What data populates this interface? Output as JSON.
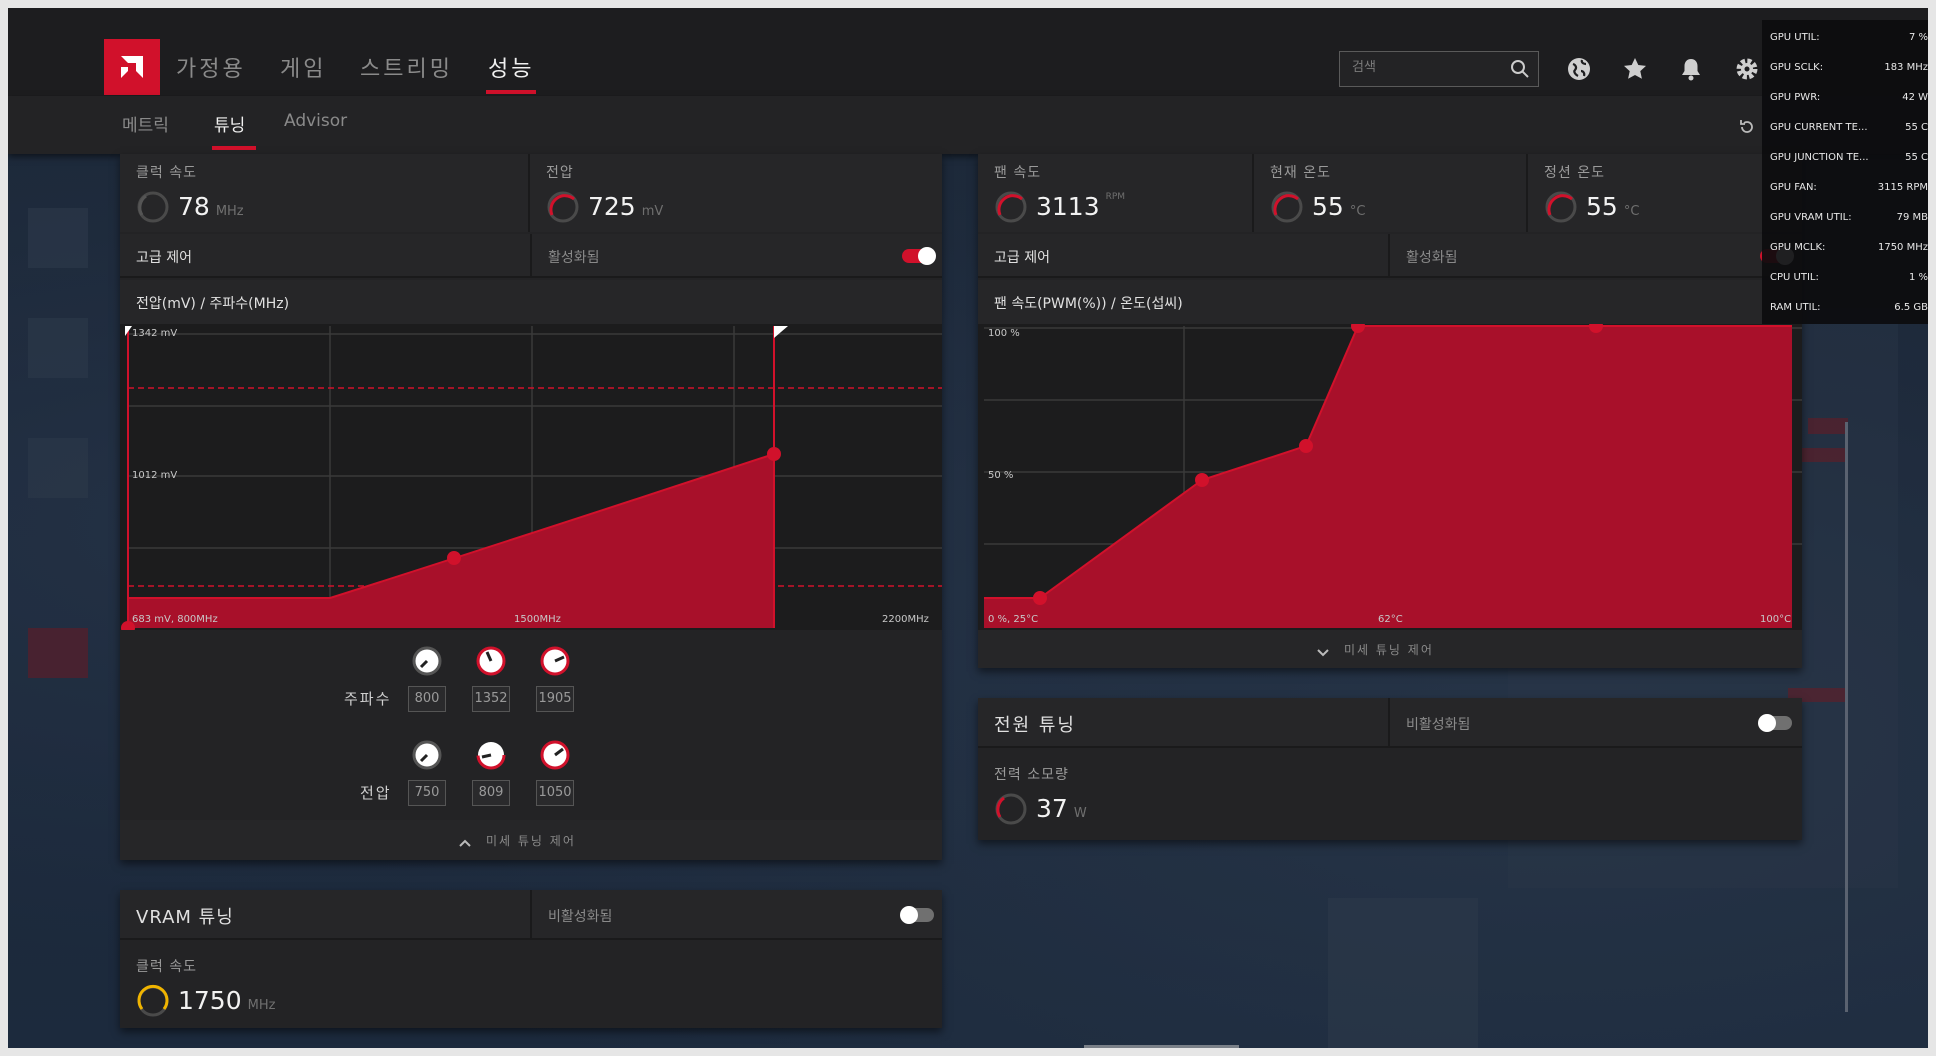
{
  "nav": {
    "tabs": [
      "가정용",
      "게임",
      "스트리밍",
      "성능"
    ],
    "active_tab": "성능",
    "search_placeholder": "검색"
  },
  "subnav": {
    "tabs": [
      "메트릭",
      "튜닝",
      "Advisor"
    ],
    "active_tab": "튜닝"
  },
  "gpu_tuning": {
    "clock": {
      "label": "클럭 속도",
      "value": "78",
      "unit": "MHz"
    },
    "voltage": {
      "label": "전압",
      "value": "725",
      "unit": "mV"
    },
    "advanced_label": "고급 제어",
    "status": "활성화됨",
    "enabled": true,
    "chart_title": "전압(mV) / 주파수(MHz)",
    "chart": {
      "y_labels": [
        "1342 mV",
        "1012 mV"
      ],
      "bottom_left": "683 mV, 800MHz",
      "bottom_mid": "1500MHz",
      "bottom_right": "2200MHz"
    },
    "freq_label": "주파수",
    "volt_label": "전압",
    "freq_values": [
      "800",
      "1352",
      "1905"
    ],
    "volt_values": [
      "750",
      "809",
      "1050"
    ],
    "fine_label": "미세 튜닝 제어"
  },
  "fan_tuning": {
    "fan_speed": {
      "label": "팬 속도",
      "value": "3113",
      "unit": "RPM"
    },
    "current_temp": {
      "label": "현재 온도",
      "value": "55",
      "unit": "°C"
    },
    "junction_temp": {
      "label": "정션 온도",
      "value": "55",
      "unit": "°C"
    },
    "advanced_label": "고급 제어",
    "status": "활성화됨",
    "enabled": true,
    "chart_title": "팬 속도(PWM(%)) / 온도(섭씨)",
    "chart": {
      "y_labels": [
        "100 %",
        "50 %"
      ],
      "bottom_left": "0 %, 25°C",
      "bottom_mid": "62°C",
      "bottom_right": "100°C"
    },
    "fine_label": "미세 튜닝 제어"
  },
  "power_tuning": {
    "title": "전원 튜닝",
    "status": "비활성화됨",
    "enabled": false,
    "consumption": {
      "label": "전력 소모량",
      "value": "37",
      "unit": "W"
    }
  },
  "vram_tuning": {
    "title": "VRAM 튜닝",
    "status": "비활성화됨",
    "enabled": false,
    "clock": {
      "label": "클럭 속도",
      "value": "1750",
      "unit": "MHz"
    }
  },
  "overlay": [
    {
      "k": "GPU UTIL:",
      "v": "7 %"
    },
    {
      "k": "GPU SCLK:",
      "v": "183 MHz"
    },
    {
      "k": "GPU PWR:",
      "v": "42 W"
    },
    {
      "k": "GPU CURRENT TE...",
      "v": "55 C"
    },
    {
      "k": "GPU JUNCTION TE...",
      "v": "55 C"
    },
    {
      "k": "GPU FAN:",
      "v": "3115 RPM"
    },
    {
      "k": "GPU VRAM UTIL:",
      "v": "79 MB"
    },
    {
      "k": "GPU MCLK:",
      "v": "1750 MHz"
    },
    {
      "k": "CPU UTIL:",
      "v": "1 %"
    },
    {
      "k": "RAM UTIL:",
      "v": "6.5 GB"
    }
  ],
  "colors": {
    "accent": "#d1112b",
    "vram_ring": "#f0b400",
    "panel": "#232325"
  }
}
